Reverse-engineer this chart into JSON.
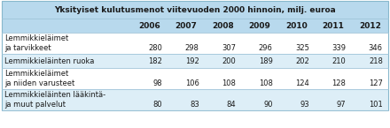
{
  "title": "Yksityiset kulutusmenot viitevuoden 2000 hinnoin, milj. euroa",
  "years": [
    "2006",
    "2007",
    "2008",
    "2009",
    "2010",
    "2011",
    "2012"
  ],
  "rows": [
    {
      "label_line1": "Lemmikkieläimet",
      "label_line2": "ja tarvikkeet",
      "values": [
        280,
        298,
        307,
        296,
        325,
        339,
        346
      ],
      "bg": "#ffffff",
      "two_line": true
    },
    {
      "label_line1": "Lemmikkieläinten ruoka",
      "label_line2": "",
      "values": [
        182,
        192,
        200,
        189,
        202,
        210,
        218
      ],
      "bg": "#ddeef7",
      "two_line": false
    },
    {
      "label_line1": "Lemmikkieläimet",
      "label_line2": "ja niiden varusteet",
      "values": [
        98,
        106,
        108,
        108,
        124,
        128,
        127
      ],
      "bg": "#ffffff",
      "two_line": true
    },
    {
      "label_line1": "Lemmikkieläinten lääkintä-",
      "label_line2": "ja muut palvelut",
      "values": [
        80,
        83,
        84,
        90,
        93,
        97,
        101
      ],
      "bg": "#ddeef7",
      "two_line": true
    }
  ],
  "header_bg": "#b8d9ed",
  "alt_bg": "#ddeef7",
  "white_bg": "#ffffff",
  "text_color": "#1a1a1a",
  "figsize": [
    4.4,
    1.45
  ],
  "dpi": 100
}
